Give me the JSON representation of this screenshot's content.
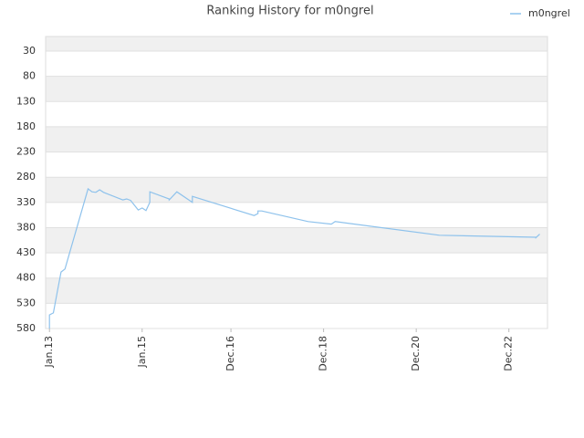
{
  "chart_data": {
    "type": "line",
    "title": "Ranking History for m0ngrel",
    "series": [
      {
        "name": "m0ngrel",
        "color": "#8ec2ec",
        "x": [
          "2013-01",
          "2013-01",
          "2013-02",
          "2013-03",
          "2013-04",
          "2013-05",
          "2013-11",
          "2013-12",
          "2014-01",
          "2014-02",
          "2014-03",
          "2014-08",
          "2014-09",
          "2014-10",
          "2014-12",
          "2015-01",
          "2015-02",
          "2015-03",
          "2015-03",
          "2015-08",
          "2015-08",
          "2015-10",
          "2016-02",
          "2016-02",
          "2017-06",
          "2017-07",
          "2017-07",
          "2017-08",
          "2018-08",
          "2019-02",
          "2019-03",
          "2021-06",
          "2023-07",
          "2023-07",
          "2023-08"
        ],
        "values": [
          580,
          553,
          549,
          508,
          468,
          462,
          303,
          309,
          310,
          305,
          310,
          325,
          323,
          326,
          345,
          341,
          346,
          330,
          309,
          323,
          325,
          309,
          330,
          318,
          356,
          352,
          347,
          347,
          368,
          373,
          368,
          395,
          399,
          400,
          393
        ]
      }
    ],
    "xlim": [
      "2012-12",
      "2023-10"
    ],
    "xticks": [
      {
        "value": "2013-01",
        "label": "Jan.13"
      },
      {
        "value": "2015-01",
        "label": "Jan.15"
      },
      {
        "value": "2016-12",
        "label": "Dec.16"
      },
      {
        "value": "2018-12",
        "label": "Dec.18"
      },
      {
        "value": "2020-12",
        "label": "Dec.20"
      },
      {
        "value": "2022-12",
        "label": "Dec.22"
      }
    ],
    "ylim": [
      1,
      580
    ],
    "yticks": [
      30,
      80,
      130,
      180,
      230,
      280,
      330,
      380,
      430,
      480,
      530,
      580
    ],
    "y_reversed": true,
    "grid": true,
    "legend": "top-right"
  }
}
